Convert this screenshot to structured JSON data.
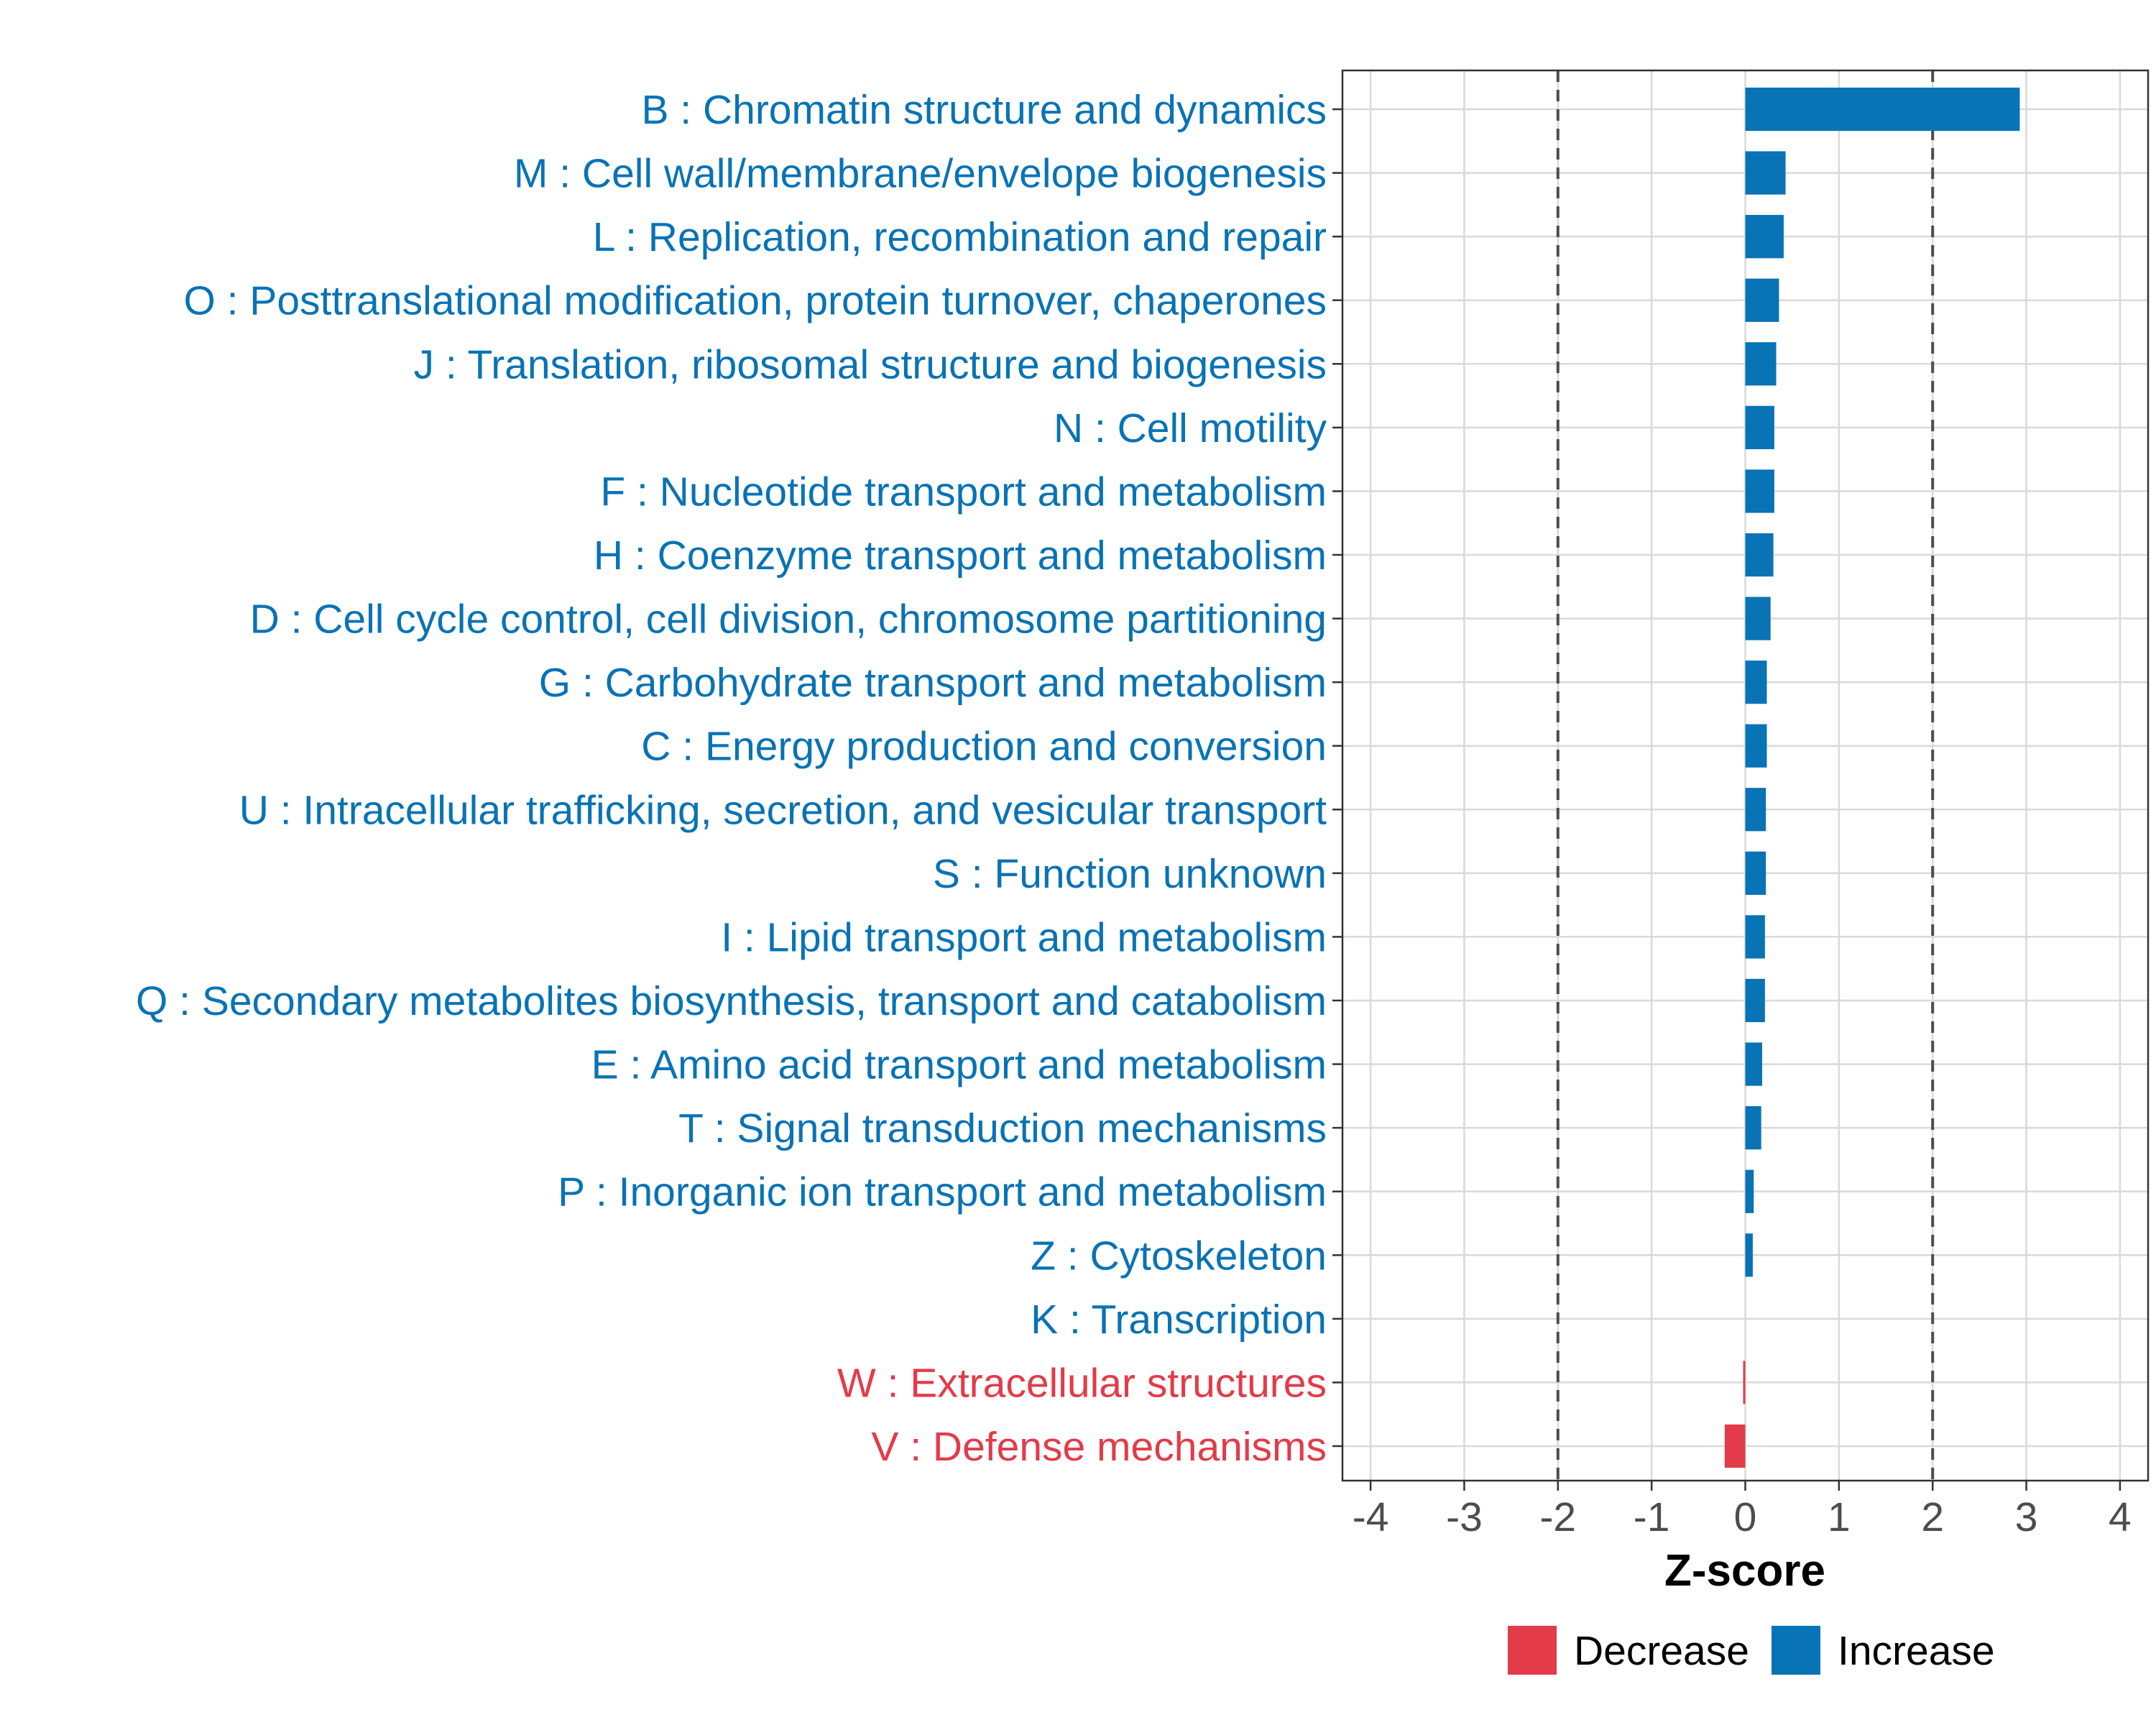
{
  "chart_data": {
    "type": "bar",
    "orientation": "horizontal",
    "title": "",
    "xlabel": "Z-score",
    "ylabel": "",
    "xlim": [
      -4.3,
      4.3
    ],
    "x_ticks": [
      -4,
      -3,
      -2,
      -1,
      0,
      1,
      2,
      3,
      4
    ],
    "x_tick_labels": [
      "-4",
      "-3",
      "-2",
      "-1",
      "0",
      "1",
      "2",
      "3",
      "4"
    ],
    "reference_lines": [
      -2,
      2
    ],
    "grid": true,
    "legend_position": "bottom",
    "colors": {
      "Increase": "#0873B5",
      "Decrease": "#E33B4A"
    },
    "legend": [
      {
        "label": "Decrease",
        "color": "#E33B4A"
      },
      {
        "label": "Increase",
        "color": "#0873B5"
      }
    ],
    "categories": [
      "B : Chromatin structure and dynamics",
      "M : Cell wall/membrane/envelope biogenesis",
      "L : Replication, recombination and repair",
      "O : Posttranslational modification, protein turnover, chaperones",
      "J : Translation, ribosomal structure and biogenesis",
      "N : Cell motility",
      "F : Nucleotide transport and metabolism",
      "H : Coenzyme transport and metabolism",
      "D : Cell cycle control, cell division, chromosome partitioning",
      "G : Carbohydrate transport and metabolism",
      "C : Energy production and conversion",
      "U : Intracellular trafficking, secretion, and vesicular transport",
      "S : Function unknown",
      "I : Lipid transport and metabolism",
      "Q : Secondary metabolites biosynthesis, transport and catabolism",
      "E : Amino acid transport and metabolism",
      "T : Signal transduction mechanisms",
      "P : Inorganic ion transport and metabolism",
      "Z : Cytoskeleton",
      "K : Transcription",
      "W : Extracellular structures",
      "V : Defense mechanisms"
    ],
    "values": [
      2.93,
      0.43,
      0.41,
      0.36,
      0.33,
      0.31,
      0.31,
      0.3,
      0.27,
      0.23,
      0.23,
      0.22,
      0.22,
      0.21,
      0.21,
      0.18,
      0.17,
      0.09,
      0.08,
      0.0,
      -0.02,
      -0.22
    ],
    "groups": [
      "Increase",
      "Increase",
      "Increase",
      "Increase",
      "Increase",
      "Increase",
      "Increase",
      "Increase",
      "Increase",
      "Increase",
      "Increase",
      "Increase",
      "Increase",
      "Increase",
      "Increase",
      "Increase",
      "Increase",
      "Increase",
      "Increase",
      "Increase",
      "Decrease",
      "Decrease"
    ]
  }
}
